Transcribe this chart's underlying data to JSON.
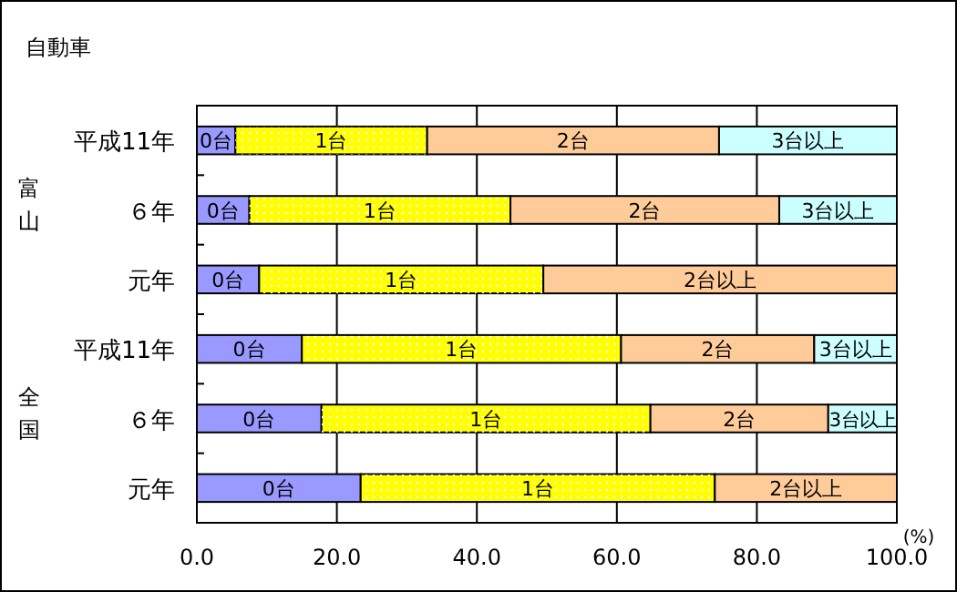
{
  "chart_data": {
    "type": "bar",
    "orientation": "horizontal",
    "stacked": true,
    "title": "自動車",
    "xlabel": "(%)",
    "categories": [
      "平成11年",
      "６年",
      "元年",
      "平成11年",
      "６年",
      "元年"
    ],
    "annotations": [
      "富山",
      "全国"
    ],
    "series": [
      {
        "name": "0台",
        "color": "#9999ff",
        "values": [
          5.5,
          7.5,
          8.9,
          15.0,
          17.8,
          23.4
        ]
      },
      {
        "name": "1台",
        "color": "#ffff00",
        "values": [
          27.4,
          37.3,
          40.6,
          45.6,
          47.0,
          50.6
        ]
      },
      {
        "name": "2台",
        "color": "#ffcc99",
        "values": [
          41.7,
          38.4,
          null,
          27.6,
          25.4,
          null
        ]
      },
      {
        "name": "3台以上",
        "color": "#ccffff",
        "values": [
          25.4,
          16.8,
          null,
          11.8,
          9.8,
          null
        ]
      },
      {
        "name": "2台以上",
        "color": "#ffcc99",
        "values": [
          null,
          null,
          50.5,
          null,
          null,
          26.0
        ]
      }
    ],
    "xlim": [
      0,
      100
    ],
    "xticks": [
      {
        "value": 0,
        "label": "0.0"
      },
      {
        "value": 20,
        "label": "20.0"
      },
      {
        "value": 40,
        "label": "40.0"
      },
      {
        "value": 60,
        "label": "60.0"
      },
      {
        "value": 80,
        "label": "80.0"
      },
      {
        "value": 100,
        "label": "100.0"
      }
    ],
    "grid": "x"
  }
}
